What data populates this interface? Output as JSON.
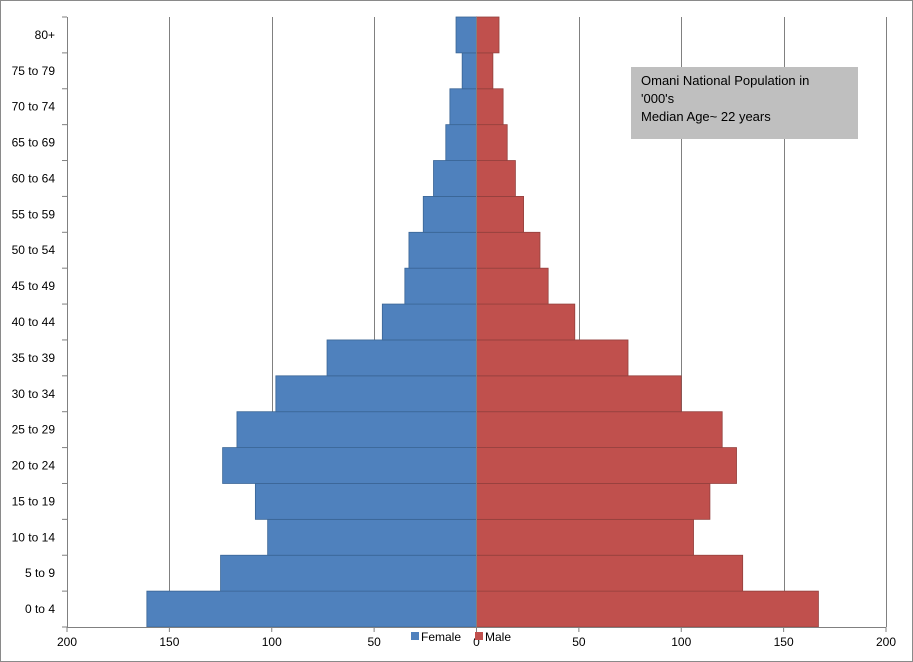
{
  "chart_data": {
    "type": "bar",
    "orientation": "horizontal",
    "layout": "population-pyramid",
    "categories": [
      "0 to 4",
      "5 to 9",
      "10 to 14",
      "15 to 19",
      "20 to 24",
      "25 to 29",
      "30 to 34",
      "35 to 39",
      "40 to 44",
      "45 to 49",
      "50 to 54",
      "55 to 59",
      "60 to 64",
      "65 to 69",
      "70 to 74",
      "75 to 79",
      "80+"
    ],
    "series": [
      {
        "name": "Female",
        "color": "#4f81bd",
        "side": "left",
        "values": [
          161,
          125,
          102,
          108,
          124,
          117,
          98,
          73,
          46,
          35,
          33,
          26,
          21,
          15,
          13,
          7,
          10
        ]
      },
      {
        "name": "Male",
        "color": "#c0504d",
        "side": "right",
        "values": [
          167,
          130,
          106,
          114,
          127,
          120,
          100,
          74,
          48,
          35,
          31,
          23,
          19,
          15,
          13,
          8,
          11
        ]
      }
    ],
    "xlim": [
      -200,
      200
    ],
    "x_ticks": [
      {
        "value": -200,
        "label": "200"
      },
      {
        "value": -150,
        "label": "150"
      },
      {
        "value": -100,
        "label": "100"
      },
      {
        "value": -50,
        "label": "50"
      },
      {
        "value": 0,
        "label": "0"
      },
      {
        "value": 50,
        "label": "50"
      },
      {
        "value": 100,
        "label": "100"
      },
      {
        "value": 150,
        "label": "150"
      },
      {
        "value": 200,
        "label": "200"
      }
    ],
    "grid": "vertical",
    "legend_position": "bottom",
    "title": "",
    "xlabel": "",
    "ylabel": "",
    "annotation_lines": [
      "Omani National Population in",
      "'000's",
      "Median Age~ 22 years"
    ]
  }
}
